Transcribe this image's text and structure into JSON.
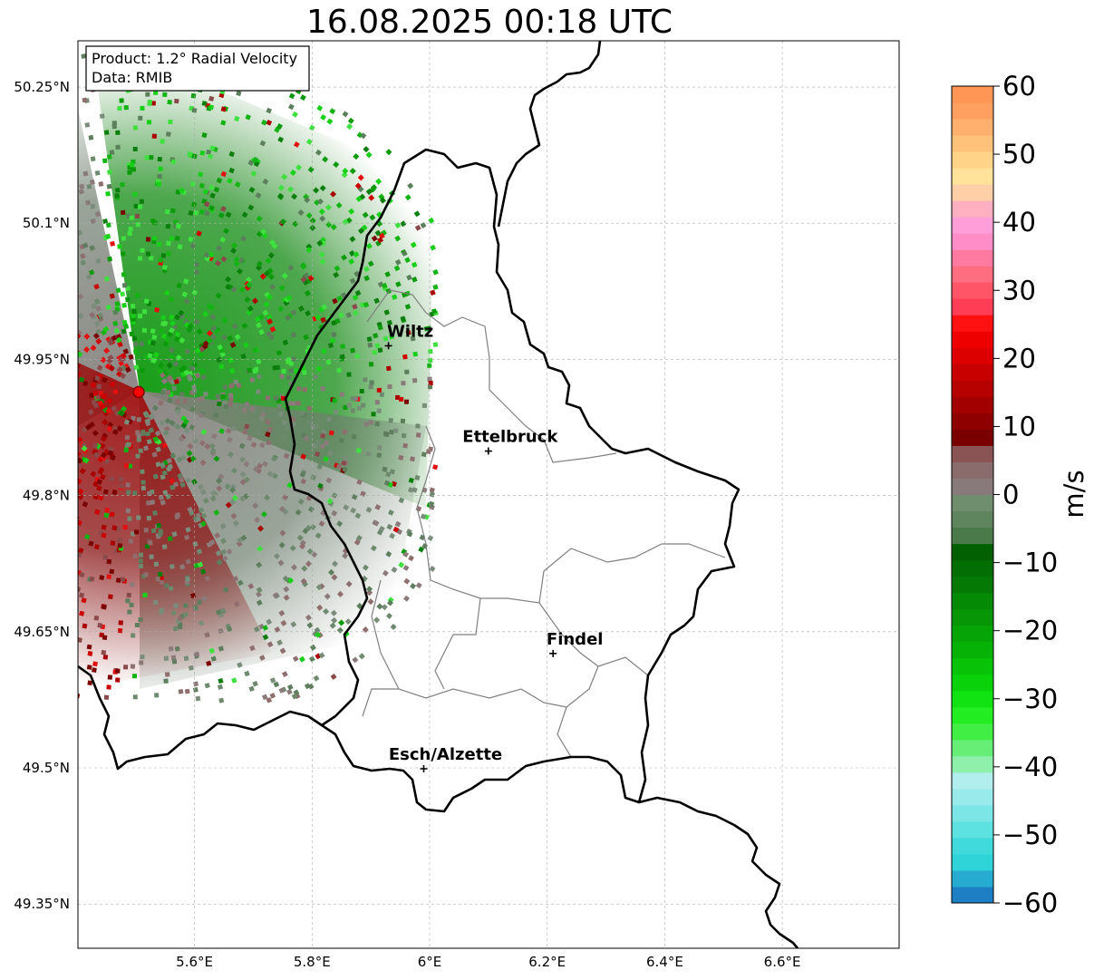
{
  "title": "16.08.2025 00:18 UTC",
  "info": {
    "product": "Product: 1.2° Radial Velocity",
    "source": "Data: RMIB"
  },
  "map": {
    "lon_range": [
      5.4,
      6.8
    ],
    "lat_range": [
      49.3,
      50.3
    ],
    "lat_ticks": [
      {
        "value": 50.25,
        "label": "50.25°N"
      },
      {
        "value": 50.1,
        "label": "50.1°N"
      },
      {
        "value": 49.95,
        "label": "49.95°N"
      },
      {
        "value": 49.8,
        "label": "49.8°N"
      },
      {
        "value": 49.65,
        "label": "49.65°N"
      },
      {
        "value": 49.5,
        "label": "49.5°N"
      },
      {
        "value": 49.35,
        "label": "49.35°N"
      }
    ],
    "lon_ticks": [
      {
        "value": 5.6,
        "label": "5.6°E"
      },
      {
        "value": 5.8,
        "label": "5.8°E"
      },
      {
        "value": 6.0,
        "label": "6°E"
      },
      {
        "value": 6.2,
        "label": "6.2°E"
      },
      {
        "value": 6.4,
        "label": "6.4°E"
      },
      {
        "value": 6.6,
        "label": "6.6°E"
      }
    ],
    "radar_site": {
      "lon": 5.505,
      "lat": 49.914
    },
    "cities": [
      {
        "name": "Wiltz",
        "lon": 5.93,
        "lat": 49.965
      },
      {
        "name": "Ettelbruck",
        "lon": 6.1,
        "lat": 49.849
      },
      {
        "name": "Findel",
        "lon": 6.21,
        "lat": 49.626
      },
      {
        "name": "Esch/Alzette",
        "lon": 5.99,
        "lat": 49.499
      }
    ]
  },
  "colorbar": {
    "unit": "m/s",
    "min": -60,
    "max": 60,
    "ticks": [
      {
        "value": 60,
        "label": "60"
      },
      {
        "value": 50,
        "label": "50"
      },
      {
        "value": 40,
        "label": "40"
      },
      {
        "value": 30,
        "label": "30"
      },
      {
        "value": 20,
        "label": "20"
      },
      {
        "value": 10,
        "label": "10"
      },
      {
        "value": 0,
        "label": "0"
      },
      {
        "value": -10,
        "label": "−10"
      },
      {
        "value": -20,
        "label": "−20"
      },
      {
        "value": -30,
        "label": "−30"
      },
      {
        "value": -40,
        "label": "−40"
      },
      {
        "value": -50,
        "label": "−50"
      },
      {
        "value": -60,
        "label": "−60"
      }
    ],
    "colors": [
      "#1f7fc4",
      "#26acd0",
      "#2fd4d8",
      "#41dadc",
      "#5ee1e1",
      "#7ce6e6",
      "#99ebeb",
      "#b2eeee",
      "#8ef0aa",
      "#66ee77",
      "#41ee44",
      "#22ee22",
      "#11e211",
      "#0ad20a",
      "#08c208",
      "#07b207",
      "#06a406",
      "#069606",
      "#058a05",
      "#047a04",
      "#036e03",
      "#026002",
      "#4a7a4a",
      "#5e855e",
      "#6e8e6e",
      "#887a7a",
      "#8a6c6c",
      "#8a5454",
      "#7a0000",
      "#8e0000",
      "#a20000",
      "#b60000",
      "#c80000",
      "#dc0000",
      "#ee0000",
      "#ff1111",
      "#ff3d55",
      "#ff5566",
      "#ff6d80",
      "#ff7aa0",
      "#ff8ec8",
      "#ff9ed8",
      "#ffb0c0",
      "#ffd0a8",
      "#ffe39a",
      "#ffd488",
      "#ffc27a",
      "#ffb06e",
      "#ff9f60",
      "#ff9655"
    ]
  }
}
